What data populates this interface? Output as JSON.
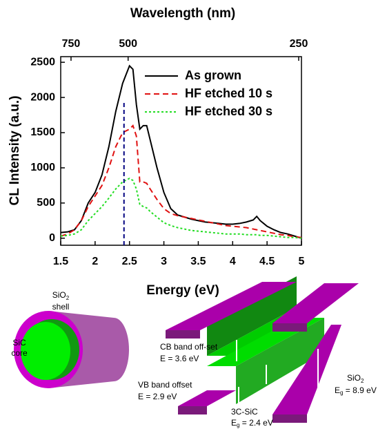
{
  "chart_data": {
    "type": "line",
    "x_label": "Energy (eV)",
    "y_label": "CL Intensity (a.u.)",
    "x2_label": "Wavelength (nm)",
    "xlim": [
      1.5,
      5.0
    ],
    "xticks": [
      1.5,
      2.0,
      2.5,
      3.0,
      3.5,
      4.0,
      4.5,
      5.0
    ],
    "ylim": [
      -100,
      2580
    ],
    "yticks": [
      0,
      500,
      1000,
      1500,
      2000,
      2500
    ],
    "x2ticks": [
      {
        "value": 1.65,
        "label": "750"
      },
      {
        "value": 2.48,
        "label": "500"
      },
      {
        "value": 4.96,
        "label": "250"
      }
    ],
    "legend": "upper right",
    "x": [
      1.5,
      1.6,
      1.7,
      1.8,
      1.9,
      2.0,
      2.1,
      2.2,
      2.3,
      2.4,
      2.5,
      2.55,
      2.6,
      2.65,
      2.7,
      2.75,
      2.8,
      2.9,
      3.0,
      3.1,
      3.2,
      3.3,
      3.4,
      3.5,
      3.6,
      3.7,
      3.8,
      3.9,
      4.0,
      4.1,
      4.2,
      4.3,
      4.35,
      4.4,
      4.5,
      4.6,
      4.7,
      4.8,
      4.9,
      5.0
    ],
    "series": [
      {
        "name": "As grown",
        "color": "#000000",
        "dash": "solid",
        "values": [
          80,
          90,
          120,
          250,
          500,
          650,
          900,
          1300,
          1800,
          2200,
          2450,
          2400,
          1900,
          1550,
          1600,
          1600,
          1400,
          1000,
          650,
          420,
          330,
          300,
          270,
          250,
          230,
          220,
          210,
          200,
          200,
          210,
          230,
          260,
          310,
          250,
          170,
          120,
          80,
          60,
          30,
          0
        ]
      },
      {
        "name": "HF etched 10 s",
        "color": "#e01010",
        "dash": "dashed",
        "values": [
          30,
          60,
          120,
          250,
          450,
          600,
          750,
          1000,
          1300,
          1500,
          1550,
          1600,
          1450,
          800,
          800,
          780,
          700,
          550,
          420,
          350,
          320,
          300,
          280,
          260,
          240,
          220,
          200,
          180,
          170,
          160,
          150,
          130,
          120,
          110,
          90,
          70,
          50,
          40,
          20,
          10
        ]
      },
      {
        "name": "HF etched 30 s",
        "color": "#22dd22",
        "dash": "dotted",
        "values": [
          30,
          40,
          60,
          120,
          250,
          350,
          450,
          570,
          700,
          800,
          850,
          820,
          700,
          480,
          450,
          430,
          380,
          300,
          220,
          180,
          150,
          130,
          110,
          100,
          90,
          80,
          70,
          60,
          60,
          60,
          50,
          50,
          50,
          40,
          40,
          30,
          20,
          10,
          10,
          0
        ]
      }
    ],
    "vline": {
      "x": 2.42,
      "y": [
        -100,
        1930
      ],
      "color": "#000080"
    }
  },
  "diagram": {
    "shell": {
      "text": "SiO",
      "sub": "2",
      "rest": "shell"
    },
    "core": {
      "line1": "SiC",
      "line2": "core"
    },
    "cb": {
      "label": "CB band off-set",
      "energy": "E = 3.6 eV"
    },
    "vb": {
      "label": "VB band offset",
      "energy": "E = 2.9 eV"
    },
    "sic": {
      "label": "3C-SiC",
      "e": "E",
      "sub": "g",
      "value": " = 2.4 eV"
    },
    "sio2": {
      "text": "SiO",
      "sub": "2",
      "e": "E",
      "esub": "g",
      "value": " = 8.9 eV"
    }
  }
}
